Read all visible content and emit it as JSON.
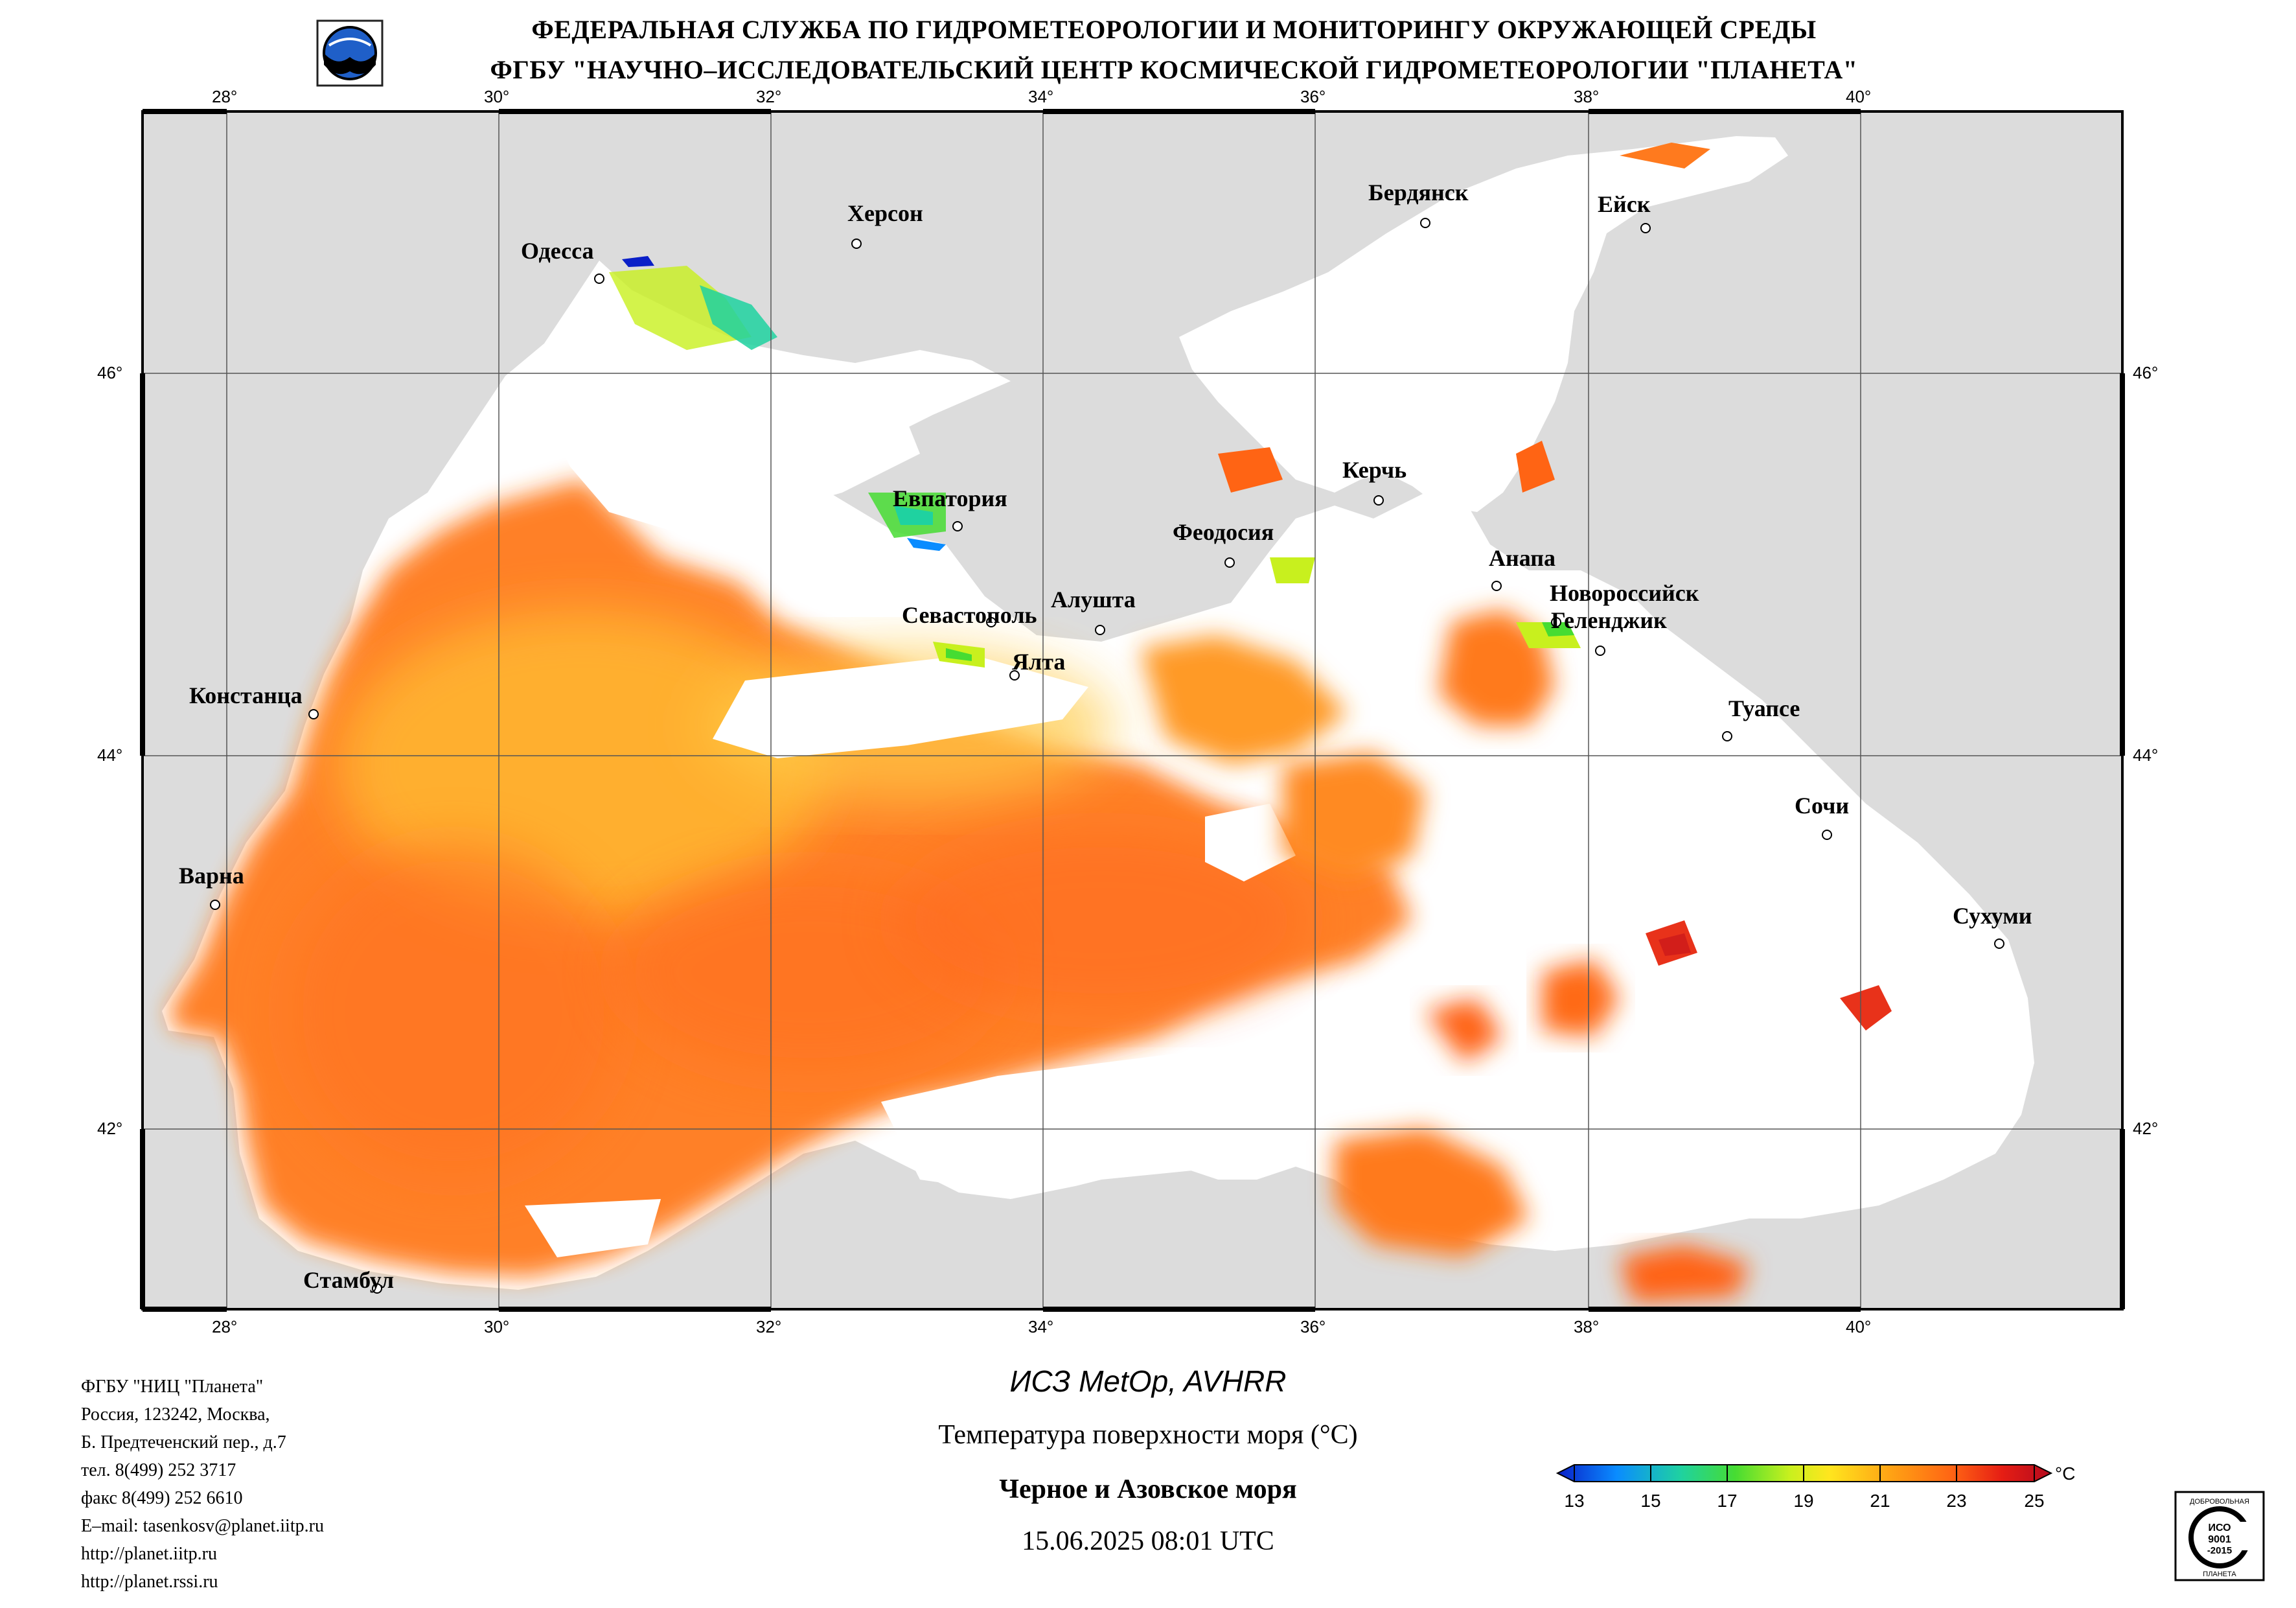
{
  "header": {
    "line1": "ФЕДЕРАЛЬНАЯ СЛУЖБА ПО ГИДРОМЕТЕОРОЛОГИИ И МОНИТОРИНГУ ОКРУЖАЮЩЕЙ СРЕДЫ",
    "line2": "ФГБУ \"НАУЧНО–ИССЛЕДОВАТЕЛЬСКИЙ ЦЕНТР КОСМИЧЕСКОЙ ГИДРОМЕТЕОРОЛОГИИ \"ПЛАНЕТА\""
  },
  "map": {
    "lon_labels": [
      "28°",
      "30°",
      "32°",
      "34°",
      "36°",
      "38°",
      "40°"
    ],
    "lat_labels": [
      "46°",
      "44°",
      "42°"
    ],
    "land_color": "#dcdcdc",
    "cloud_color": "#ffffff",
    "cities": [
      {
        "name": "Одесса"
      },
      {
        "name": "Херсон"
      },
      {
        "name": "Бердянск"
      },
      {
        "name": "Ейск"
      },
      {
        "name": "Евпатория"
      },
      {
        "name": "Керчь"
      },
      {
        "name": "Феодосия"
      },
      {
        "name": "Анапа"
      },
      {
        "name": "Новороссийск"
      },
      {
        "name": "Геленджик"
      },
      {
        "name": "Севастополь"
      },
      {
        "name": "Алушта"
      },
      {
        "name": "Ялта"
      },
      {
        "name": "Констанца"
      },
      {
        "name": "Туапсе"
      },
      {
        "name": "Сочи"
      },
      {
        "name": "Варна"
      },
      {
        "name": "Сухуми"
      },
      {
        "name": "Стамбул"
      }
    ]
  },
  "organization": {
    "lines": [
      "ФГБУ \"НИЦ \"Планета\"",
      "Россия, 123242, Москва,",
      "Б. Предтеченский пер., д.7",
      "тел. 8(499) 252 3717",
      "факс 8(499) 252 6610",
      "E–mail: tasenkosv@planet.iitp.ru",
      "http://planet.iitp.ru",
      "http://planet.rssi.ru"
    ]
  },
  "product": {
    "satellite": "ИСЗ MetOp, AVHRR",
    "parameter": "Температура поверхности моря (°C)",
    "region": "Черное и Азовское моря",
    "datetime": "15.06.2025 08:01 UTC"
  },
  "legend": {
    "unit": "°C",
    "ticks": [
      "13",
      "15",
      "17",
      "19",
      "21",
      "23",
      "25"
    ],
    "min_value": 13,
    "max_value": 25,
    "colors": [
      "#0a1fc8",
      "#0a8cff",
      "#1fd2a0",
      "#46dc32",
      "#c8f01e",
      "#ffe61e",
      "#ffa014",
      "#ff6414",
      "#e61e14",
      "#b40a1e"
    ]
  },
  "certification": {
    "line1": "ДОБРОВОЛЬНАЯ",
    "line2": "ИСО",
    "line3": "9001",
    "line4": "-2015",
    "line5": "ПЛАНЕТА"
  }
}
